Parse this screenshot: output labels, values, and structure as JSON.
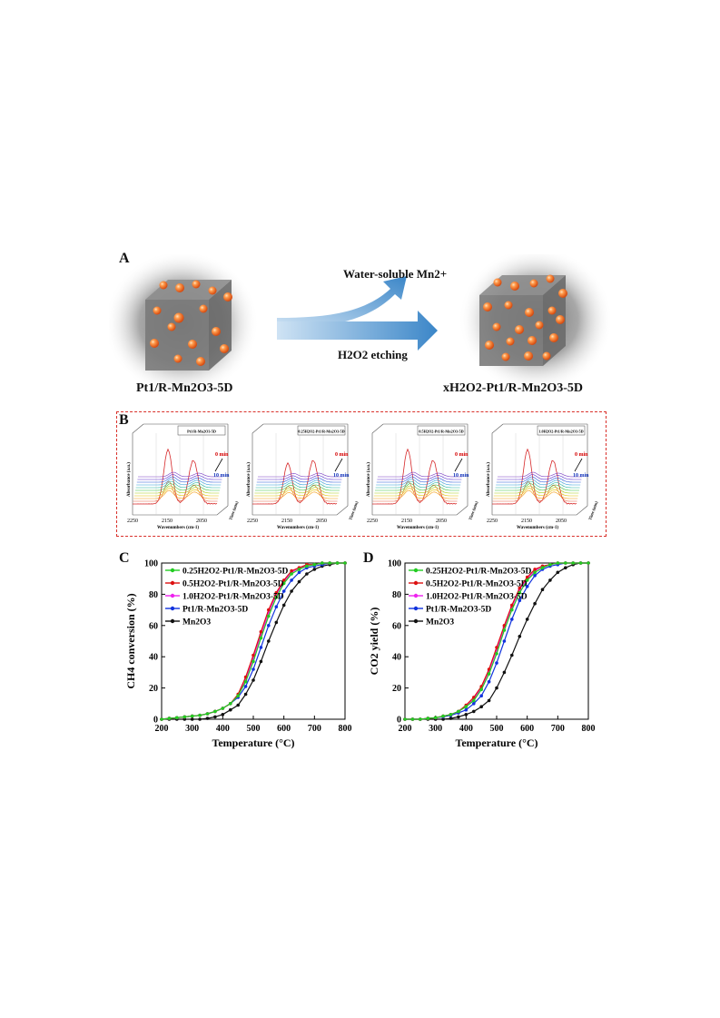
{
  "panel_letters": {
    "a": "A",
    "b": "B",
    "c": "C",
    "d": "D"
  },
  "panelA": {
    "left_label": "Pt1/R-Mn2O3-5D",
    "right_label": "xH2O2-Pt1/R-Mn2O3-5D",
    "arrow_top_text": "Water-soluble Mn2+",
    "arrow_bottom_text": "H2O2 etching"
  },
  "panelB": {
    "ylabel": "Absorbance (a.u.)",
    "xlabel": "Wavenumbers (cm-1)",
    "zlabel": "Time (min)",
    "ticks": [
      "2250",
      "2150",
      "2050"
    ],
    "time_start": "0 min",
    "time_end": "10 min",
    "subplots": [
      {
        "title": "Pt1/R-Mn2O3-5D"
      },
      {
        "title": "0.25H2O2-Pt1/R-Mn2O3-5D"
      },
      {
        "title": "0.5H2O2-Pt1/R-Mn2O3-5D"
      },
      {
        "title": "1.0H2O2-Pt1/R-Mn2O3-5D"
      }
    ]
  },
  "colors": {
    "g025": "#22cc22",
    "g05": "#dd1111",
    "g10": "#ee22ee",
    "gPt": "#1133dd",
    "gMn": "#111111",
    "dash_border": "#d9302a"
  },
  "chart_data": [
    {
      "type": "line",
      "xlabel": "Temperature (oC)",
      "ylabel": "CH4 conversion (%)",
      "xlim": [
        200,
        800
      ],
      "ylim": [
        0,
        100
      ],
      "xticks": [
        200,
        300,
        400,
        500,
        600,
        700,
        800
      ],
      "yticks": [
        0,
        20,
        40,
        60,
        80,
        100
      ],
      "legend_position": "top-left",
      "series": [
        {
          "name": "0.25H2O2-Pt1/R-Mn2O3-5D",
          "color_key": "g025",
          "x": [
            200,
            225,
            250,
            275,
            300,
            325,
            350,
            375,
            400,
            425,
            450,
            475,
            500,
            525,
            550,
            575,
            600,
            625,
            650,
            675,
            700,
            725,
            750,
            775,
            800
          ],
          "y": [
            0,
            0.5,
            1,
            1.5,
            2,
            2.5,
            3.5,
            5,
            7,
            10,
            15,
            24,
            37,
            52,
            66,
            78,
            87,
            93,
            96,
            98,
            99,
            100,
            100,
            100,
            100
          ]
        },
        {
          "name": "0.5H2O2-Pt1/R-Mn2O3-5D",
          "color_key": "g05",
          "x": [
            200,
            225,
            250,
            275,
            300,
            325,
            350,
            375,
            400,
            425,
            450,
            475,
            500,
            525,
            550,
            575,
            600,
            625,
            650,
            675,
            700,
            725,
            750,
            775,
            800
          ],
          "y": [
            0,
            0.5,
            1,
            1.5,
            2,
            2.5,
            3.5,
            5,
            7,
            10,
            16,
            27,
            41,
            56,
            70,
            81,
            89,
            95,
            97,
            99,
            99,
            100,
            100,
            100,
            100
          ]
        },
        {
          "name": "1.0H2O2-Pt1/R-Mn2O3-5D",
          "color_key": "g10",
          "x": [
            200,
            225,
            250,
            275,
            300,
            325,
            350,
            375,
            400,
            425,
            450,
            475,
            500,
            525,
            550,
            575,
            600,
            625,
            650,
            675,
            700,
            725,
            750,
            775,
            800
          ],
          "y": [
            0,
            0.5,
            1,
            1.5,
            2,
            2.5,
            3.5,
            5,
            7,
            10,
            15,
            25,
            39,
            54,
            68,
            80,
            88,
            94,
            97,
            98,
            99,
            100,
            100,
            100,
            100
          ]
        },
        {
          "name": "Pt1/R-Mn2O3-5D",
          "color_key": "gPt",
          "x": [
            200,
            225,
            250,
            275,
            300,
            325,
            350,
            375,
            400,
            425,
            450,
            475,
            500,
            525,
            550,
            575,
            600,
            625,
            650,
            675,
            700,
            725,
            750,
            775,
            800
          ],
          "y": [
            0,
            0.5,
            1,
            1.5,
            2,
            2.5,
            3.5,
            5,
            7,
            10,
            14,
            21,
            32,
            46,
            60,
            72,
            82,
            89,
            94,
            97,
            98,
            99,
            100,
            100,
            100
          ]
        },
        {
          "name": "Mn2O3",
          "color_key": "gMn",
          "x": [
            200,
            225,
            250,
            275,
            300,
            325,
            350,
            375,
            400,
            425,
            450,
            475,
            500,
            525,
            550,
            575,
            600,
            625,
            650,
            675,
            700,
            725,
            750,
            775,
            800
          ],
          "y": [
            0,
            0,
            0,
            0,
            0,
            0,
            0.5,
            1.5,
            3,
            6,
            9,
            16,
            25,
            37,
            50,
            62,
            73,
            82,
            88,
            93,
            96,
            98,
            99,
            100,
            100
          ]
        }
      ]
    },
    {
      "type": "line",
      "xlabel": "Temperature (oC)",
      "ylabel": "CO2 yield (%)",
      "xlim": [
        200,
        800
      ],
      "ylim": [
        0,
        100
      ],
      "xticks": [
        200,
        300,
        400,
        500,
        600,
        700,
        800
      ],
      "yticks": [
        0,
        20,
        40,
        60,
        80,
        100
      ],
      "legend_position": "top-left",
      "series": [
        {
          "name": "0.25H2O2-Pt1/R-Mn2O3-5D",
          "color_key": "g025",
          "x": [
            200,
            225,
            250,
            275,
            300,
            325,
            350,
            375,
            400,
            425,
            450,
            475,
            500,
            525,
            550,
            575,
            600,
            625,
            650,
            675,
            700,
            725,
            750,
            775,
            800
          ],
          "y": [
            0,
            0,
            0,
            0.5,
            1,
            2,
            3,
            5,
            8,
            12,
            19,
            29,
            42,
            57,
            70,
            81,
            89,
            94,
            97,
            99,
            100,
            100,
            100,
            100,
            100
          ]
        },
        {
          "name": "0.5H2O2-Pt1/R-Mn2O3-5D",
          "color_key": "g05",
          "x": [
            200,
            225,
            250,
            275,
            300,
            325,
            350,
            375,
            400,
            425,
            450,
            475,
            500,
            525,
            550,
            575,
            600,
            625,
            650,
            675,
            700,
            725,
            750,
            775,
            800
          ],
          "y": [
            0,
            0,
            0,
            0.5,
            1,
            2,
            3,
            5,
            9,
            14,
            21,
            32,
            46,
            60,
            73,
            84,
            91,
            96,
            98,
            99,
            100,
            100,
            100,
            100,
            100
          ]
        },
        {
          "name": "1.0H2O2-Pt1/R-Mn2O3-5D",
          "color_key": "g10",
          "x": [
            200,
            225,
            250,
            275,
            300,
            325,
            350,
            375,
            400,
            425,
            450,
            475,
            500,
            525,
            550,
            575,
            600,
            625,
            650,
            675,
            700,
            725,
            750,
            775,
            800
          ],
          "y": [
            0,
            0,
            0,
            0.5,
            1,
            2,
            3,
            5,
            8,
            13,
            20,
            31,
            44,
            59,
            72,
            83,
            90,
            95,
            98,
            99,
            100,
            100,
            100,
            100,
            100
          ]
        },
        {
          "name": "Pt1/R-Mn2O3-5D",
          "color_key": "gPt",
          "x": [
            200,
            225,
            250,
            275,
            300,
            325,
            350,
            375,
            400,
            425,
            450,
            475,
            500,
            525,
            550,
            575,
            600,
            625,
            650,
            675,
            700,
            725,
            750,
            775,
            800
          ],
          "y": [
            0,
            0,
            0,
            0.5,
            1,
            1.5,
            2.5,
            4,
            6,
            10,
            15,
            24,
            36,
            50,
            64,
            76,
            85,
            92,
            96,
            98,
            99,
            100,
            100,
            100,
            100
          ]
        },
        {
          "name": "Mn2O3",
          "color_key": "gMn",
          "x": [
            200,
            225,
            250,
            275,
            300,
            325,
            350,
            375,
            400,
            425,
            450,
            475,
            500,
            525,
            550,
            575,
            600,
            625,
            650,
            675,
            700,
            725,
            750,
            775,
            800
          ],
          "y": [
            0,
            0,
            0,
            0,
            0,
            0,
            0.5,
            1.5,
            3,
            5,
            8,
            12,
            20,
            30,
            41,
            53,
            64,
            74,
            83,
            89,
            94,
            97,
            99,
            100,
            100
          ]
        }
      ]
    }
  ]
}
